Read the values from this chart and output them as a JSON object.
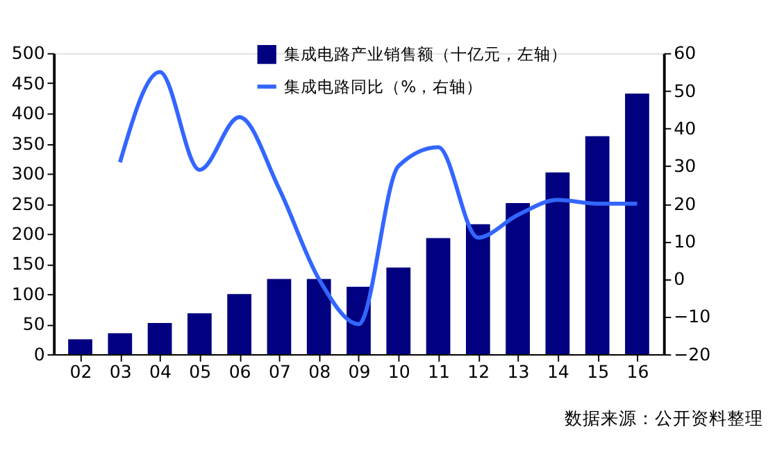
{
  "chart_data": {
    "type": "bar",
    "categories": [
      "02",
      "03",
      "04",
      "05",
      "06",
      "07",
      "08",
      "09",
      "10",
      "11",
      "12",
      "13",
      "14",
      "15",
      "16"
    ],
    "series": [
      {
        "name": "集成电路产业销售额（十亿元，左轴）",
        "color": "#000080",
        "values": [
          25,
          35,
          52,
          68,
          100,
          125,
          125,
          112,
          144,
          193,
          216,
          251,
          302,
          362,
          433
        ]
      },
      {
        "name": "集成电路同比（%，右轴）",
        "type": "line",
        "axis": "y2",
        "color": "#3366ff",
        "values": [
          null,
          31,
          55,
          29,
          43,
          24,
          0,
          -12,
          30,
          35,
          11,
          17,
          21,
          20,
          20
        ]
      }
    ],
    "ylim": [
      0,
      500
    ],
    "yticks": [
      0,
      50,
      100,
      150,
      200,
      250,
      300,
      350,
      400,
      450,
      500
    ],
    "y2lim": [
      -20,
      60
    ],
    "y2ticks": [
      -20,
      -10,
      0,
      10,
      20,
      30,
      40,
      50,
      60
    ],
    "grid": false,
    "legend": "top",
    "marker": "none",
    "line_style": "solid",
    "annotations": [
      "数据来源：公开资料整理"
    ]
  }
}
